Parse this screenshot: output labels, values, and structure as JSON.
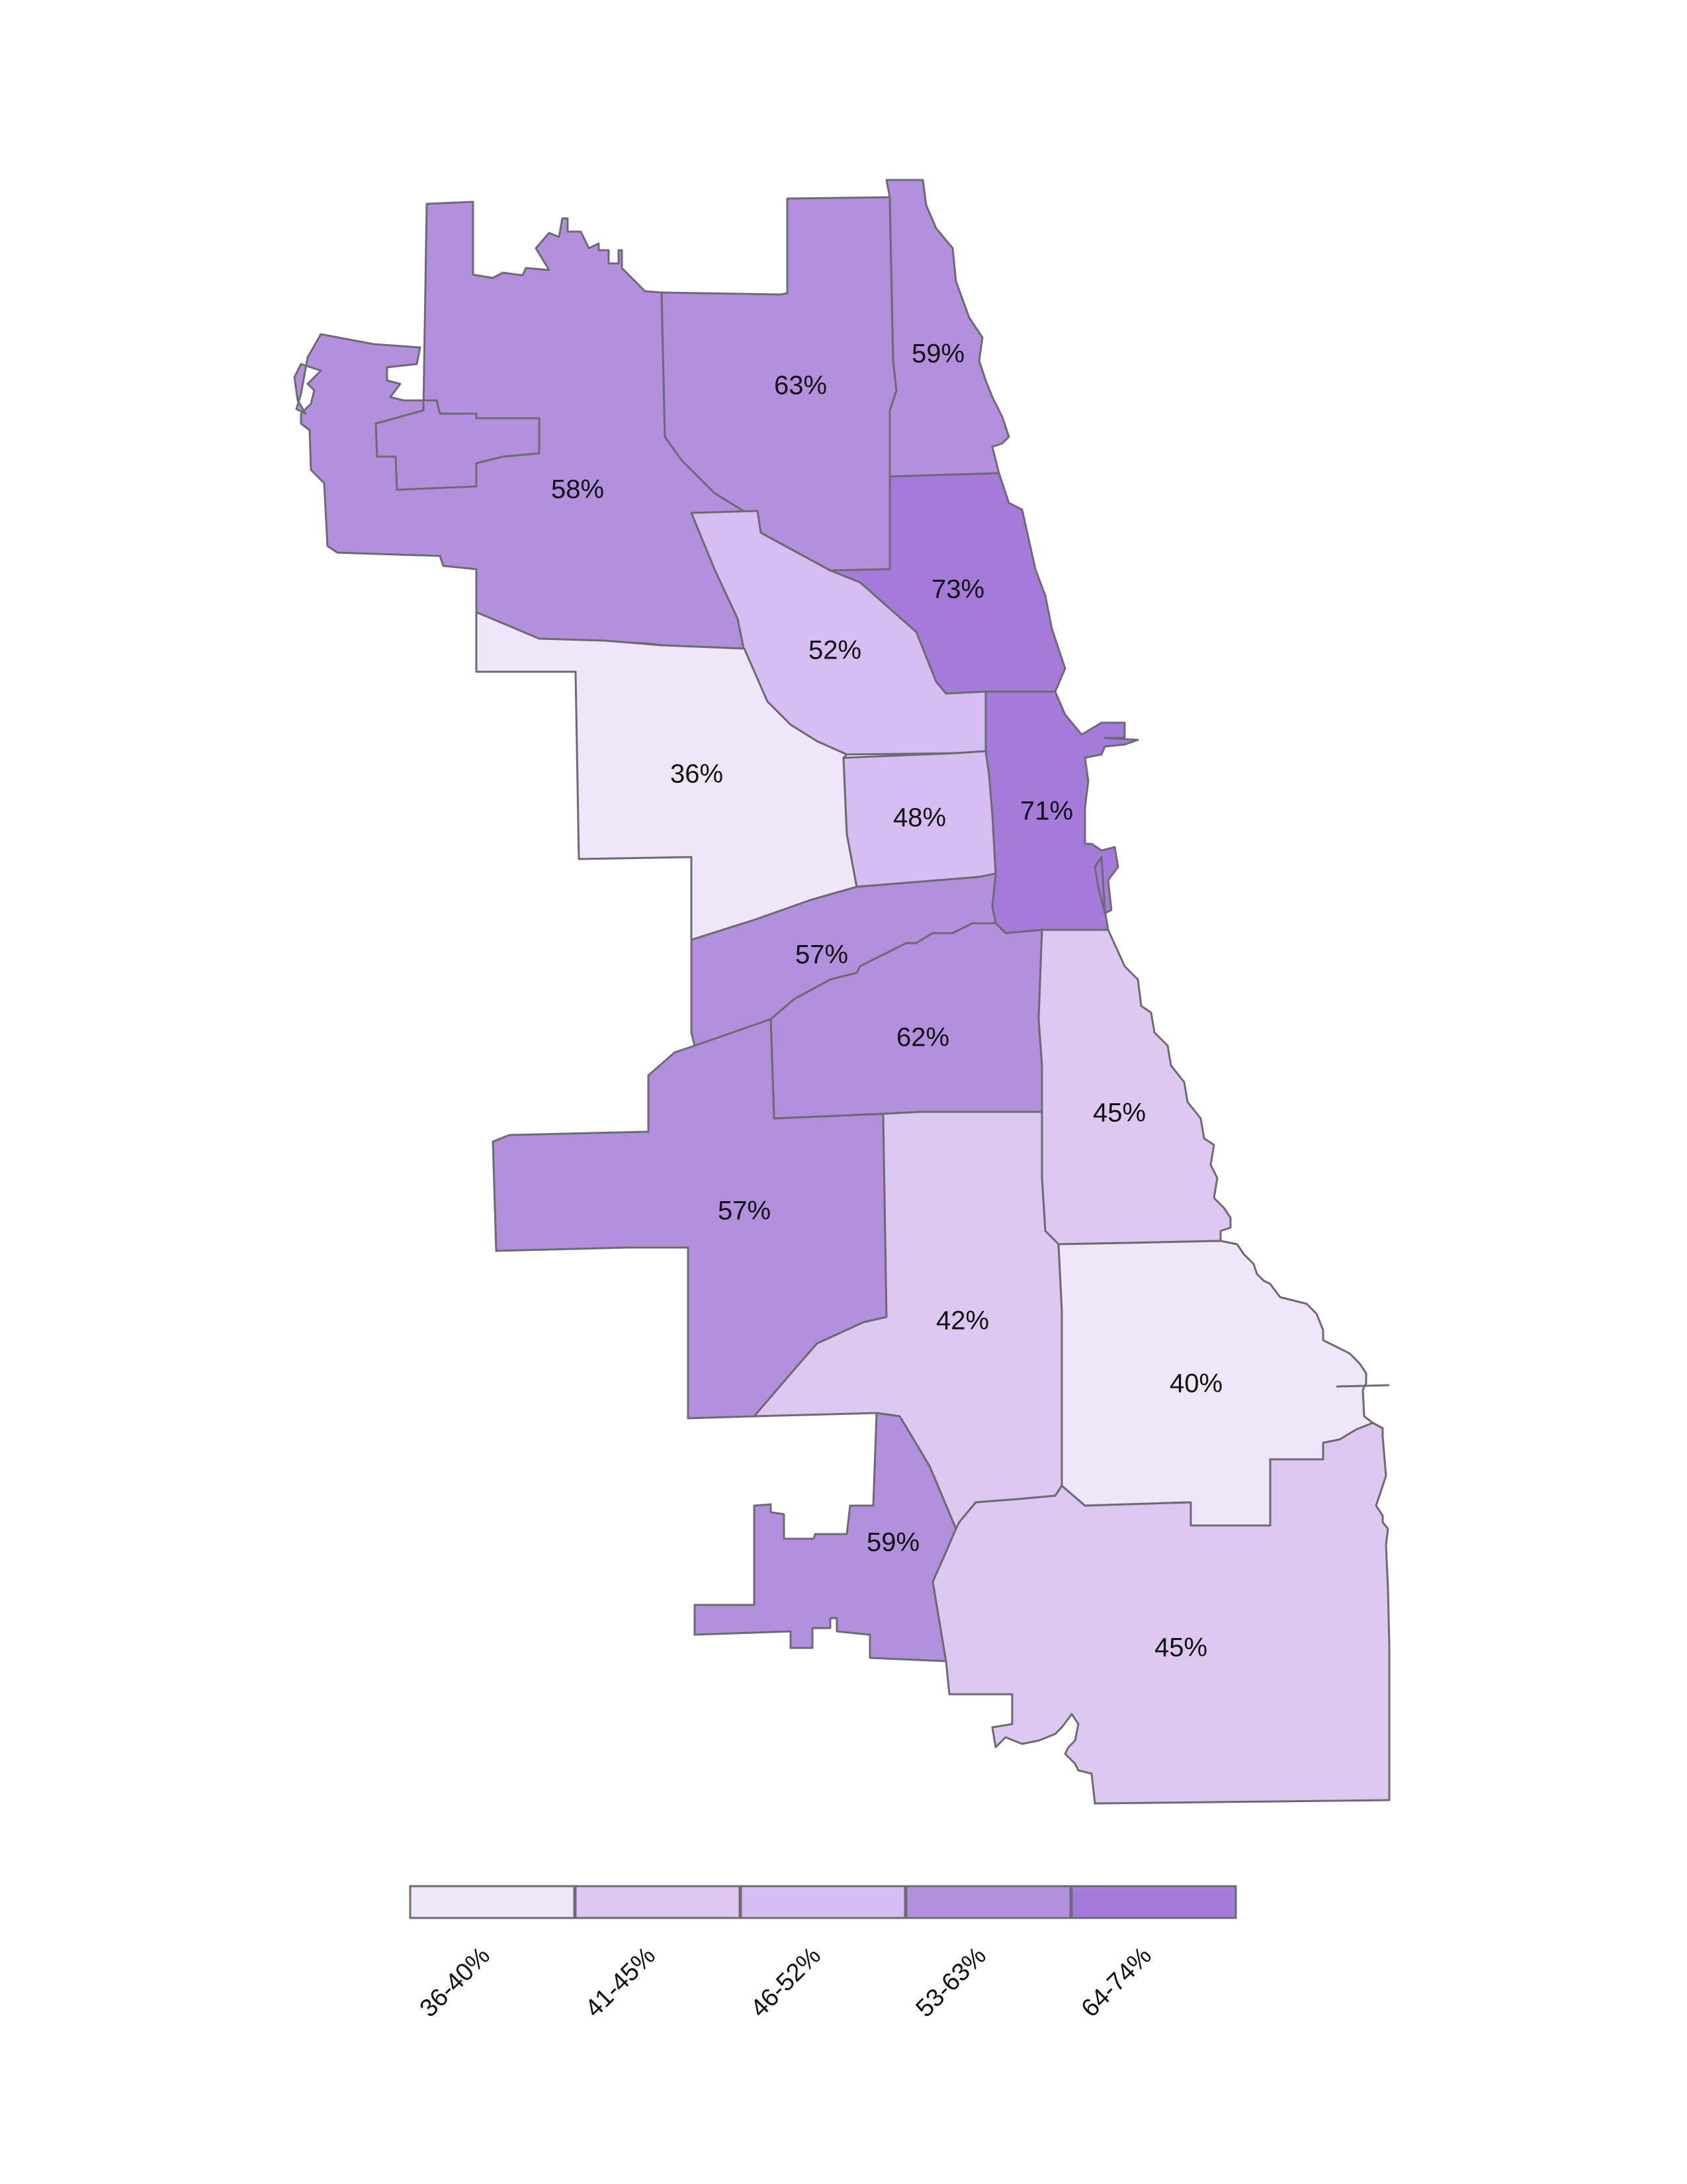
{
  "colors": {
    "bin1": "#efe6fa",
    "bin2": "#dcc8f0",
    "bin3": "#d6bdf2",
    "bin4": "#b290de",
    "bin5": "#a47bdb",
    "border": "#6e6a72"
  },
  "regions": [
    {
      "id": "far-northwest",
      "label": "58%",
      "bin": "bin4"
    },
    {
      "id": "north",
      "label": "63%",
      "bin": "bin4"
    },
    {
      "id": "far-north-lakefront",
      "label": "59%",
      "bin": "bin4"
    },
    {
      "id": "north-lakefront",
      "label": "73%",
      "bin": "bin5"
    },
    {
      "id": "northwest-central",
      "label": "52%",
      "bin": "bin3"
    },
    {
      "id": "west",
      "label": "36%",
      "bin": "bin1"
    },
    {
      "id": "near-west",
      "label": "48%",
      "bin": "bin3"
    },
    {
      "id": "central",
      "label": "71%",
      "bin": "bin5"
    },
    {
      "id": "southwest-near",
      "label": "57%",
      "bin": "bin4"
    },
    {
      "id": "south-central",
      "label": "62%",
      "bin": "bin4"
    },
    {
      "id": "south-lakefront",
      "label": "45%",
      "bin": "bin2"
    },
    {
      "id": "southwest",
      "label": "57%",
      "bin": "bin4"
    },
    {
      "id": "south",
      "label": "42%",
      "bin": "bin2"
    },
    {
      "id": "southeast",
      "label": "40%",
      "bin": "bin1"
    },
    {
      "id": "far-southwest",
      "label": "59%",
      "bin": "bin4"
    },
    {
      "id": "far-south",
      "label": "45%",
      "bin": "bin2"
    }
  ],
  "legend": [
    {
      "label": "36-40%",
      "bin": "bin1"
    },
    {
      "label": "41-45%",
      "bin": "bin2"
    },
    {
      "label": "46-52%",
      "bin": "bin3"
    },
    {
      "label": "53-63%",
      "bin": "bin4"
    },
    {
      "label": "64-74%",
      "bin": "bin5"
    }
  ]
}
